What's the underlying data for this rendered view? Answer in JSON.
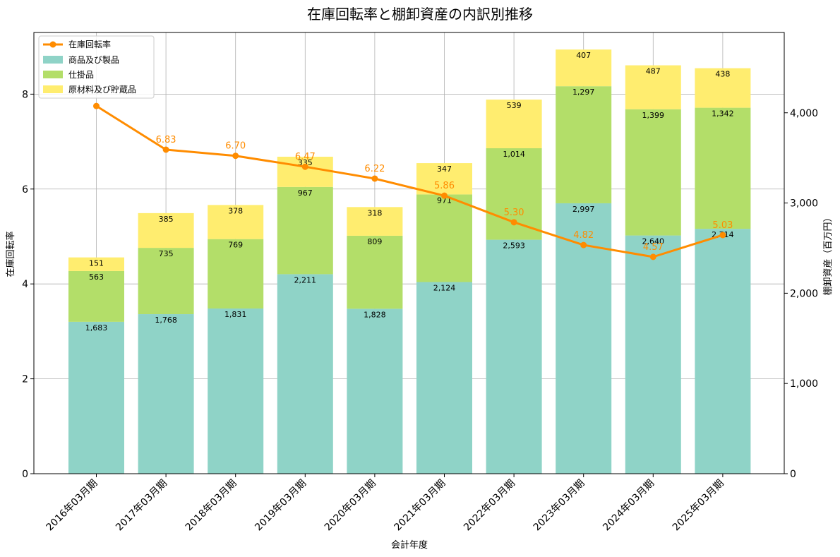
{
  "chart_data": {
    "type": "bar",
    "title": "在庫回転率と棚卸資産の内訳別推移",
    "xlabel": "会計年度",
    "ylabel_left": "在庫回転率",
    "ylabel_right": "棚卸資産（百万円）",
    "categories": [
      "2016年03月期",
      "2017年03月期",
      "2018年03月期",
      "2019年03月期",
      "2020年03月期",
      "2021年03月期",
      "2022年03月期",
      "2023年03月期",
      "2024年03月期",
      "2025年03月期"
    ],
    "ylim_left": [
      0,
      9.3
    ],
    "ylim_right": [
      0,
      4890
    ],
    "yticks_left": [
      0,
      2,
      4,
      6,
      8
    ],
    "yticks_right": [
      0,
      1000,
      2000,
      3000,
      4000
    ],
    "yticks_right_labels": [
      "0",
      "1,000",
      "2,000",
      "3,000",
      "4,000"
    ],
    "grid": true,
    "legend_position": "top-left",
    "series": [
      {
        "name": "商品及び製品",
        "color": "#8fd3c7",
        "values": [
          1683,
          1768,
          1831,
          2211,
          1828,
          2124,
          2593,
          2997,
          2640,
          2714
        ],
        "labels": [
          "1,683",
          "1,768",
          "1,831",
          "2,211",
          "1,828",
          "2,124",
          "2,593",
          "2,997",
          "2,640",
          "2,714"
        ]
      },
      {
        "name": "仕掛品",
        "color": "#b3de69",
        "values": [
          563,
          735,
          769,
          967,
          809,
          971,
          1014,
          1297,
          1399,
          1342
        ],
        "labels": [
          "563",
          "735",
          "769",
          "967",
          "809",
          "971",
          "1,014",
          "1,297",
          "1,399",
          "1,342"
        ]
      },
      {
        "name": "原材料及び貯蔵品",
        "color": "#ffed6f",
        "values": [
          151,
          385,
          378,
          335,
          318,
          347,
          539,
          407,
          487,
          438
        ],
        "labels": [
          "151",
          "385",
          "378",
          "335",
          "318",
          "347",
          "539",
          "407",
          "487",
          "438"
        ]
      }
    ],
    "line": {
      "name": "在庫回転率",
      "color": "#ff8c00",
      "values": [
        7.75,
        6.83,
        6.7,
        6.47,
        6.22,
        5.86,
        5.3,
        4.82,
        4.57,
        5.03
      ],
      "labels": [
        "",
        "6.83",
        "6.70",
        "6.47",
        "6.22",
        "5.86",
        "5.30",
        "4.82",
        "4.57",
        "5.03"
      ]
    }
  }
}
